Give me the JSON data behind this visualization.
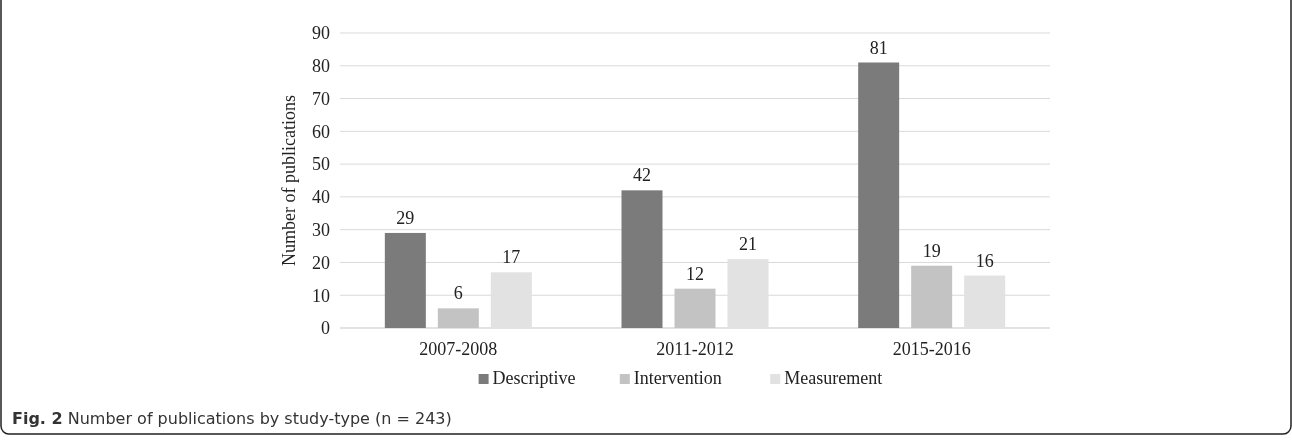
{
  "chart_data": {
    "type": "bar",
    "ylabel": "Number of publications",
    "categories": [
      "2007-2008",
      "2011-2012",
      "2015-2016"
    ],
    "series": [
      {
        "name": "Descriptive",
        "color": "#7b7b7b",
        "values": [
          29,
          42,
          81
        ]
      },
      {
        "name": "Intervention",
        "color": "#c3c3c3",
        "values": [
          6,
          12,
          19
        ]
      },
      {
        "name": "Measurement",
        "color": "#e1e2e1",
        "values": [
          17,
          21,
          16
        ]
      }
    ],
    "ylim": [
      0,
      90
    ],
    "yticks": [
      0,
      10,
      20,
      30,
      40,
      50,
      60,
      70,
      80,
      90
    ],
    "grid": "y",
    "legend": "bottom",
    "data_labels": true,
    "annotations": [
      "Fig. 2 Number of publications by study-type (n = 243)"
    ]
  }
}
